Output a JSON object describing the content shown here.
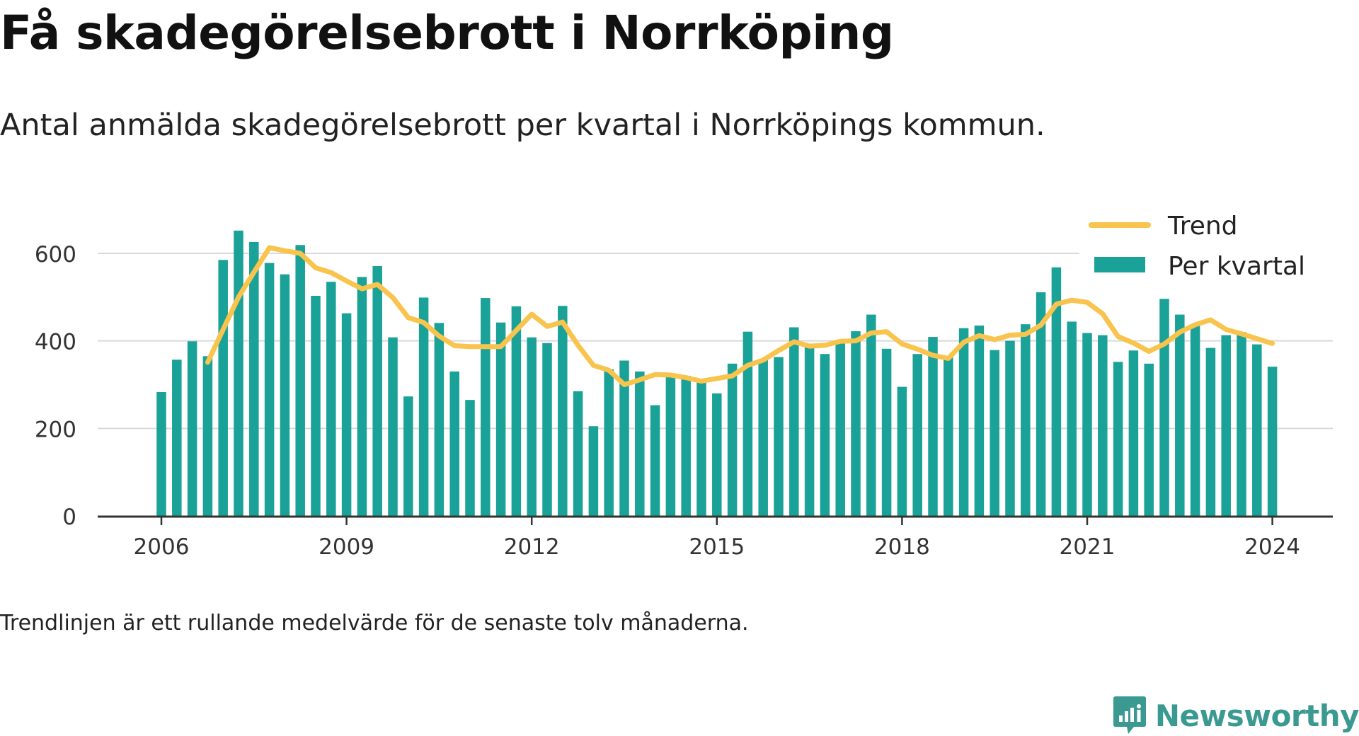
{
  "title": "Få skadegörelsebrott i Norrköping",
  "subtitle": "Antal anmälda skadegörelsebrott per kvartal i Norrköpings kommun.",
  "footnote": "Trendlinjen är ett rullande medelvärde för de senaste tolv månaderna.",
  "brand": {
    "name": "Newsworthy",
    "icon": "newsworthy-logo-icon"
  },
  "colors": {
    "bar": "#1aa198",
    "trend": "#f9c44d",
    "grid": "#d9d9d9",
    "axis": "#333333",
    "text": "#333333",
    "brand": "#3a9a92"
  },
  "chart_data": {
    "type": "bar",
    "x_unit": "quarter",
    "ylim": [
      0,
      700
    ],
    "yticks": [
      0,
      200,
      400,
      600
    ],
    "ytick_labels": [
      "0",
      "200",
      "400",
      "600"
    ],
    "xticks": [
      "2006",
      "2009",
      "2012",
      "2015",
      "2018",
      "2021",
      "2024"
    ],
    "grid": true,
    "legend_position": "top-right",
    "legend": {
      "trend_label": "Trend",
      "bars_label": "Per kvartal"
    },
    "categories": [
      "2006 Q1",
      "2006 Q2",
      "2006 Q3",
      "2006 Q4",
      "2007 Q1",
      "2007 Q2",
      "2007 Q3",
      "2007 Q4",
      "2008 Q1",
      "2008 Q2",
      "2008 Q3",
      "2008 Q4",
      "2009 Q1",
      "2009 Q2",
      "2009 Q3",
      "2009 Q4",
      "2010 Q1",
      "2010 Q2",
      "2010 Q3",
      "2010 Q4",
      "2011 Q1",
      "2011 Q2",
      "2011 Q3",
      "2011 Q4",
      "2012 Q1",
      "2012 Q2",
      "2012 Q3",
      "2012 Q4",
      "2013 Q1",
      "2013 Q2",
      "2013 Q3",
      "2013 Q4",
      "2014 Q1",
      "2014 Q2",
      "2014 Q3",
      "2014 Q4",
      "2015 Q1",
      "2015 Q2",
      "2015 Q3",
      "2015 Q4",
      "2016 Q1",
      "2016 Q2",
      "2016 Q3",
      "2016 Q4",
      "2017 Q1",
      "2017 Q2",
      "2017 Q3",
      "2017 Q4",
      "2018 Q1",
      "2018 Q2",
      "2018 Q3",
      "2018 Q4",
      "2019 Q1",
      "2019 Q2",
      "2019 Q3",
      "2019 Q4",
      "2020 Q1",
      "2020 Q2",
      "2020 Q3",
      "2020 Q4",
      "2021 Q1",
      "2021 Q2",
      "2021 Q3",
      "2021 Q4",
      "2022 Q1",
      "2022 Q2",
      "2022 Q3",
      "2022 Q4",
      "2023 Q1",
      "2023 Q2",
      "2023 Q3",
      "2023 Q4",
      "2024 Q1"
    ],
    "series": [
      {
        "name": "Per kvartal",
        "type": "bar",
        "values": [
          283,
          357,
          399,
          365,
          585,
          652,
          626,
          578,
          552,
          619,
          503,
          535,
          463,
          546,
          571,
          408,
          273,
          499,
          441,
          330,
          265,
          498,
          442,
          479,
          408,
          395,
          480,
          285,
          205,
          335,
          355,
          330,
          253,
          322,
          320,
          310,
          280,
          348,
          421,
          356,
          363,
          431,
          388,
          370,
          397,
          422,
          460,
          382,
          295,
          370,
          409,
          362,
          429,
          435,
          379,
          400,
          438,
          511,
          568,
          444,
          418,
          413,
          352,
          378,
          348,
          496,
          460,
          436,
          384,
          413,
          420,
          392,
          341
        ]
      },
      {
        "name": "Trend",
        "type": "line",
        "values": [
          null,
          null,
          null,
          351,
          426,
          500,
          557,
          613,
          606,
          600,
          567,
          556,
          537,
          519,
          529,
          499,
          453,
          442,
          411,
          389,
          387,
          387,
          387,
          424,
          461,
          433,
          443,
          390,
          344,
          333,
          300,
          311,
          323,
          322,
          316,
          308,
          314,
          320,
          344,
          356,
          378,
          398,
          388,
          390,
          399,
          400,
          418,
          421,
          393,
          381,
          367,
          360,
          397,
          412,
          403,
          413,
          415,
          436,
          484,
          493,
          488,
          462,
          410,
          395,
          376,
          393,
          420,
          437,
          448,
          426,
          416,
          405,
          394
        ]
      }
    ]
  }
}
